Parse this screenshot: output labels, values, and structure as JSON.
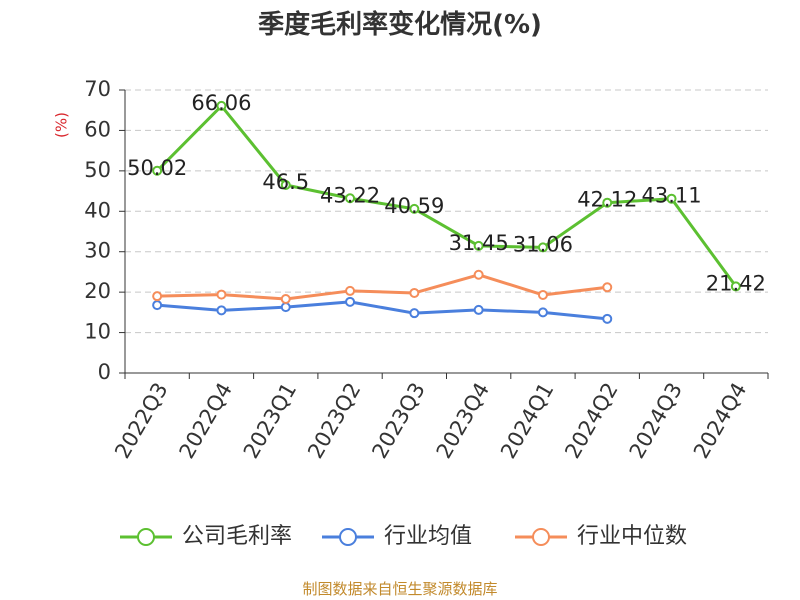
{
  "chart_data": {
    "type": "line",
    "title": "季度毛利率变化情况(%)",
    "ylabel": "(%)",
    "xlabel": "",
    "ylim": [
      0,
      70
    ],
    "yticks": [
      0,
      10,
      20,
      30,
      40,
      50,
      60,
      70
    ],
    "grid": "horizontal dashed",
    "legend_position": "bottom",
    "categories": [
      "2022Q3",
      "2022Q4",
      "2023Q1",
      "2023Q2",
      "2023Q3",
      "2023Q4",
      "2024Q1",
      "2024Q2",
      "2024Q3",
      "2024Q4"
    ],
    "series": [
      {
        "name": "公司毛利率",
        "color": "#5cc031",
        "values": [
          50.02,
          66.06,
          46.5,
          43.22,
          40.59,
          31.45,
          31.06,
          42.12,
          43.11,
          21.42
        ],
        "labels": [
          "50.02",
          "66.06",
          "46.5",
          "43.22",
          "40.59",
          "31.45",
          "31.06",
          "42.12",
          "43.11",
          "21.42"
        ]
      },
      {
        "name": "行业均值",
        "color": "#4a7fdd",
        "values": [
          16.8,
          15.5,
          16.3,
          17.6,
          14.8,
          15.6,
          15.0,
          13.4,
          null,
          null
        ]
      },
      {
        "name": "行业中位数",
        "color": "#f58d5a",
        "values": [
          19.0,
          19.4,
          18.3,
          20.3,
          19.8,
          24.3,
          19.3,
          21.2,
          null,
          null
        ]
      }
    ]
  },
  "footer": "制图数据来自恒生聚源数据库"
}
